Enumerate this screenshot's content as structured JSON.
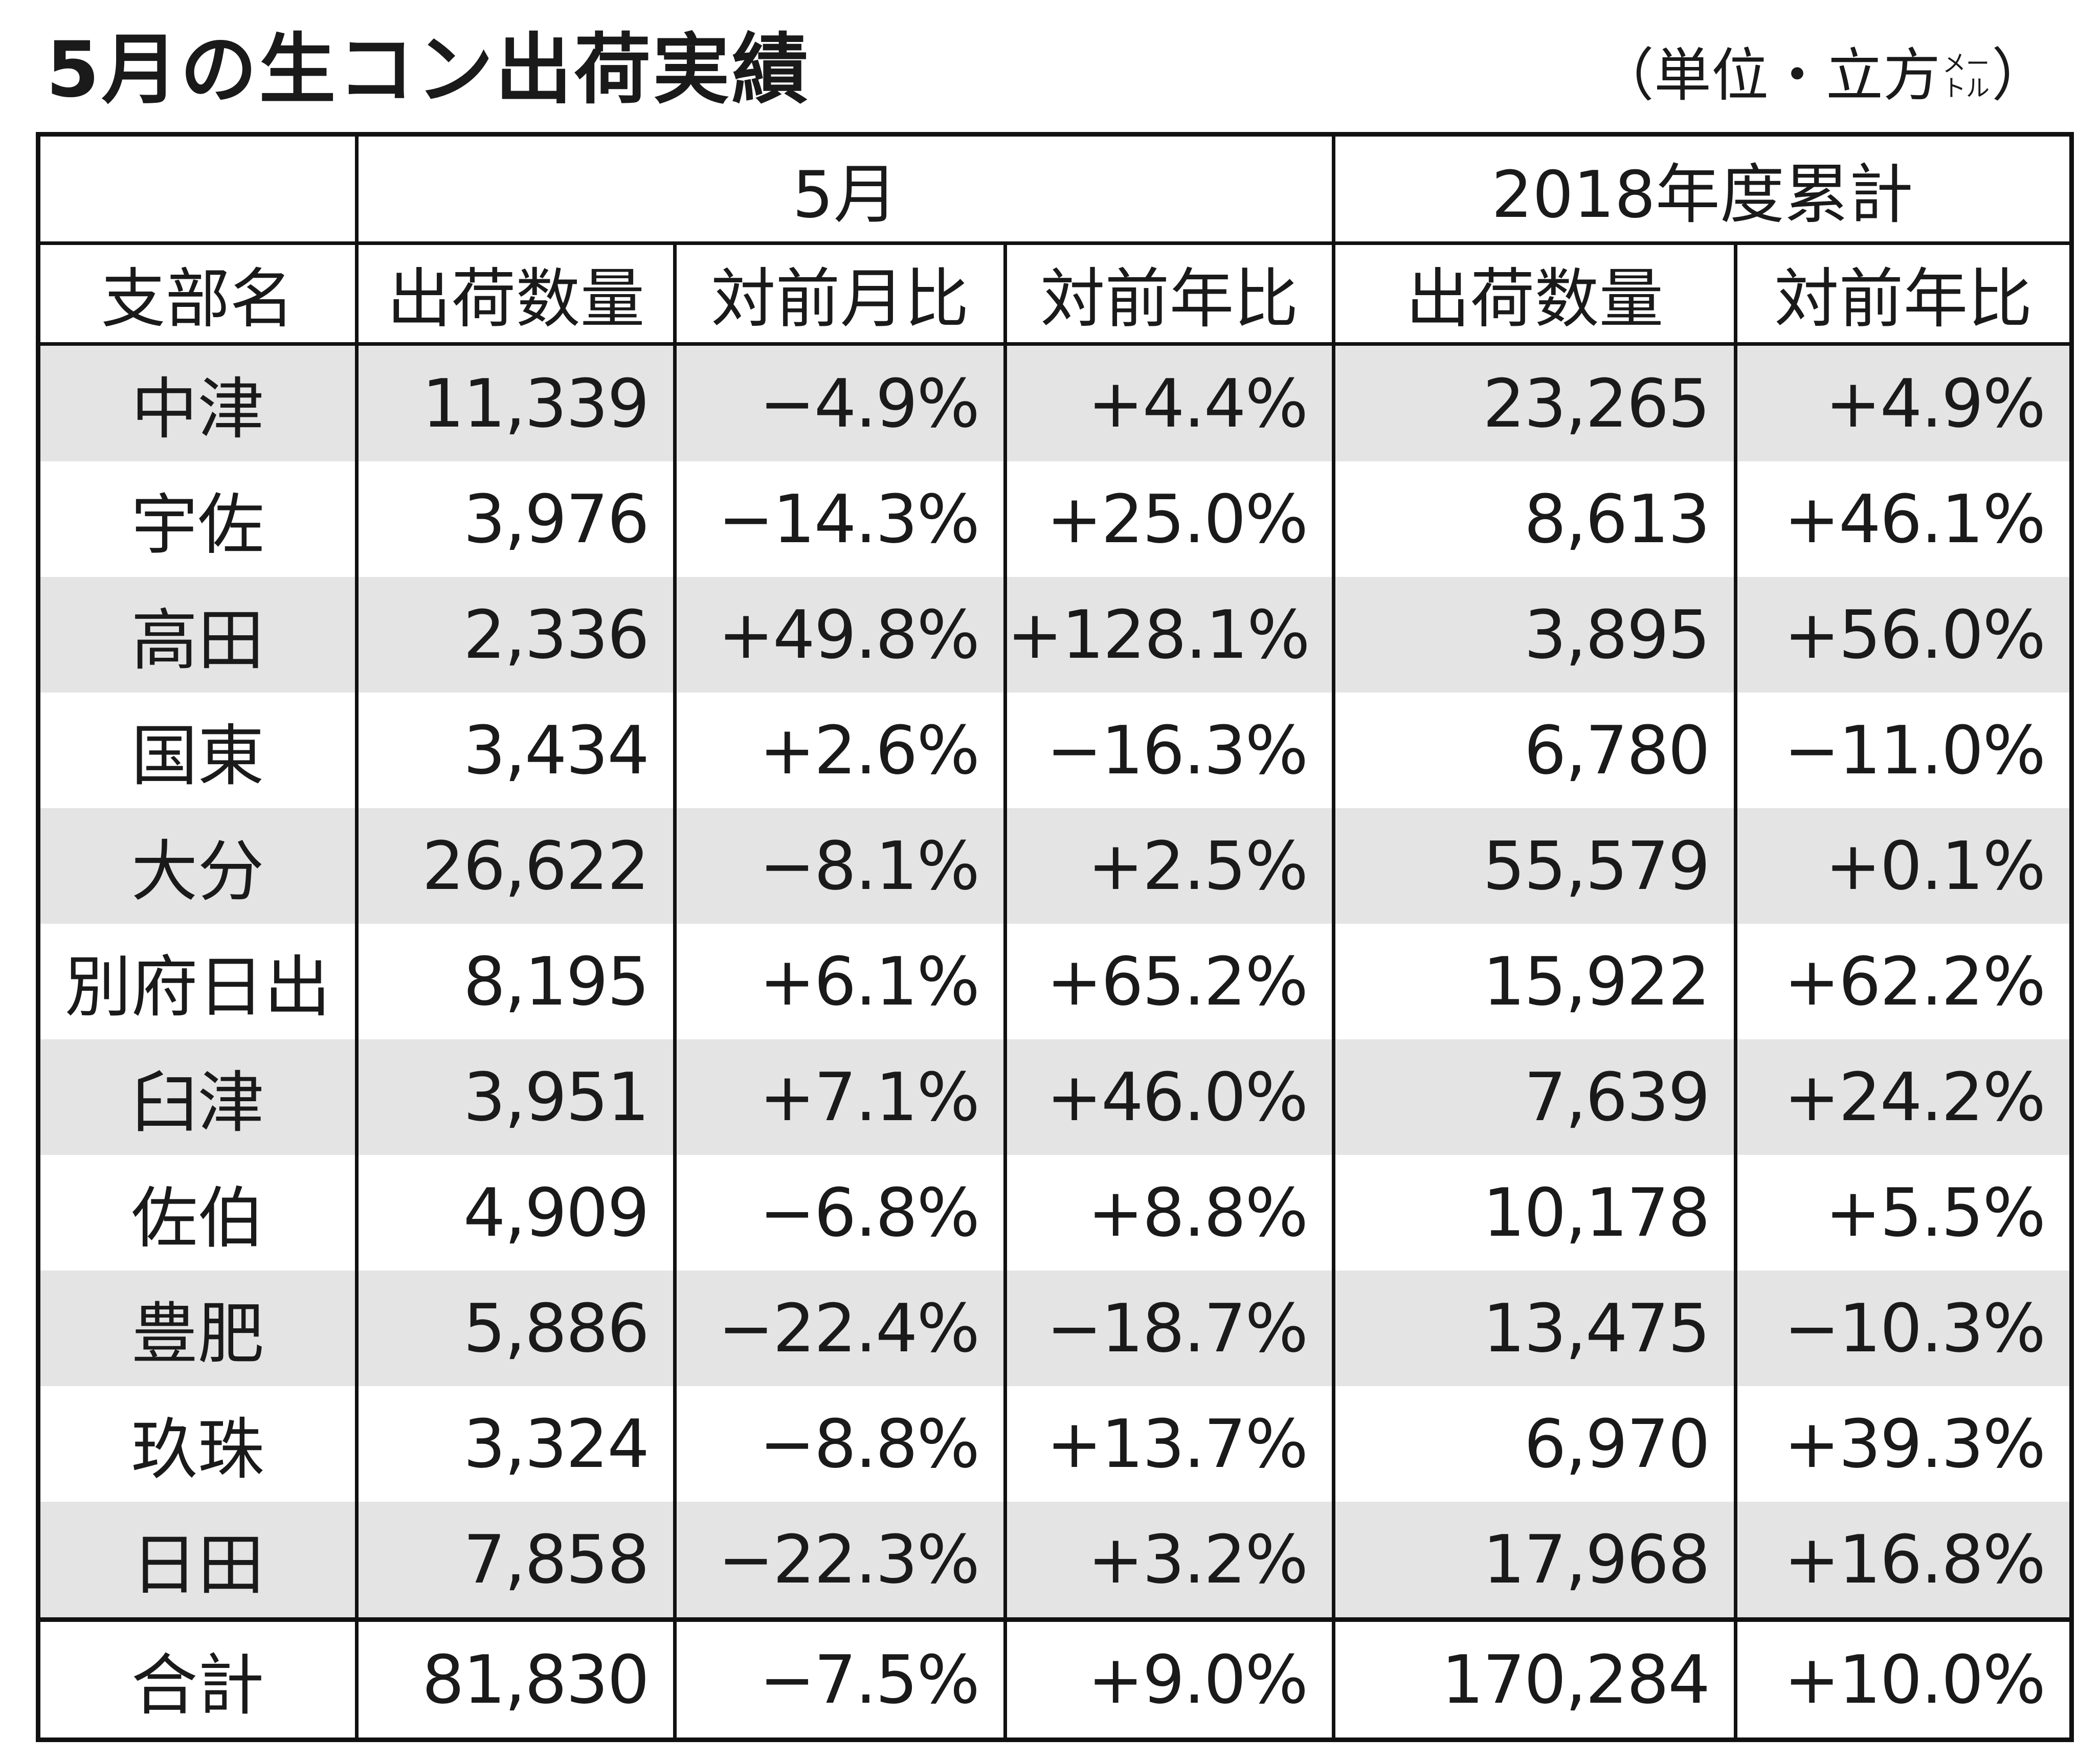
{
  "title": "5月の生コン出荷実績",
  "unit": {
    "prefix": "（単位・立方",
    "small_top": "メー",
    "small_bottom": "トル",
    "suffix": "）"
  },
  "chart_data": {
    "type": "table",
    "group_headers": [
      "",
      "5月",
      "2018年度累計"
    ],
    "columns": [
      "支部名",
      "出荷数量",
      "対前月比",
      "対前年比",
      "出荷数量",
      "対前年比"
    ],
    "rows": [
      [
        "中津",
        "11,339",
        "−4.9%",
        "+4.4%",
        "23,265",
        "+4.9%"
      ],
      [
        "宇佐",
        "3,976",
        "−14.3%",
        "+25.0%",
        "8,613",
        "+46.1%"
      ],
      [
        "高田",
        "2,336",
        "+49.8%",
        "+128.1%",
        "3,895",
        "+56.0%"
      ],
      [
        "国東",
        "3,434",
        "+2.6%",
        "−16.3%",
        "6,780",
        "−11.0%"
      ],
      [
        "大分",
        "26,622",
        "−8.1%",
        "+2.5%",
        "55,579",
        "+0.1%"
      ],
      [
        "別府日出",
        "8,195",
        "+6.1%",
        "+65.2%",
        "15,922",
        "+62.2%"
      ],
      [
        "臼津",
        "3,951",
        "+7.1%",
        "+46.0%",
        "7,639",
        "+24.2%"
      ],
      [
        "佐伯",
        "4,909",
        "−6.8%",
        "+8.8%",
        "10,178",
        "+5.5%"
      ],
      [
        "豊肥",
        "5,886",
        "−22.4%",
        "−18.7%",
        "13,475",
        "−10.3%"
      ],
      [
        "玖珠",
        "3,324",
        "−8.8%",
        "+13.7%",
        "6,970",
        "+39.3%"
      ],
      [
        "日田",
        "7,858",
        "−22.3%",
        "+3.2%",
        "17,968",
        "+16.8%"
      ]
    ],
    "total": [
      "合計",
      "81,830",
      "−7.5%",
      "+9.0%",
      "170,284",
      "+10.0%"
    ],
    "shade_color": "#e4e4e4",
    "border_color": "#111111"
  }
}
